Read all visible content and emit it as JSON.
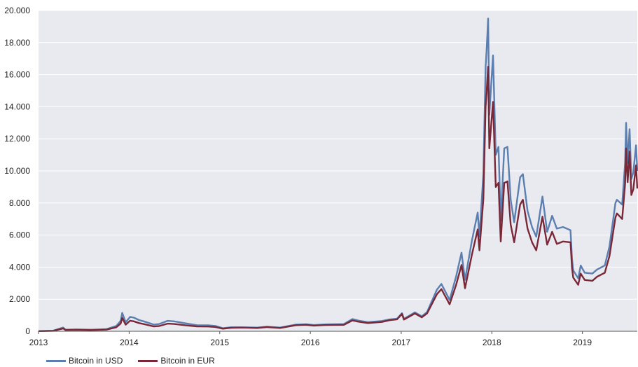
{
  "chart_data": {
    "type": "line",
    "title": "",
    "xlabel": "",
    "ylabel": "",
    "x_range": [
      "2013-01-01",
      "2019-08-10"
    ],
    "ylim": [
      0,
      20000
    ],
    "x_ticks": [
      {
        "date": "2013-01-01",
        "label": "2013"
      },
      {
        "date": "2014-01-01",
        "label": "2014"
      },
      {
        "date": "2015-01-01",
        "label": "2015"
      },
      {
        "date": "2016-01-01",
        "label": "2016"
      },
      {
        "date": "2017-01-01",
        "label": "2017"
      },
      {
        "date": "2018-01-01",
        "label": "2018"
      },
      {
        "date": "2019-01-01",
        "label": "2019"
      }
    ],
    "y_ticks": [
      {
        "value": 0,
        "label": "0"
      },
      {
        "value": 2000,
        "label": "2.000"
      },
      {
        "value": 4000,
        "label": "4.000"
      },
      {
        "value": 6000,
        "label": "6.000"
      },
      {
        "value": 8000,
        "label": "8.000"
      },
      {
        "value": 10000,
        "label": "10.000"
      },
      {
        "value": 12000,
        "label": "12.000"
      },
      {
        "value": 14000,
        "label": "14.000"
      },
      {
        "value": 16000,
        "label": "16.000"
      },
      {
        "value": 18000,
        "label": "18.000"
      },
      {
        "value": 20000,
        "label": "20.000"
      }
    ],
    "grid": true,
    "legend_position": "bottom-left",
    "plot_background": "#e8eaf0",
    "series": [
      {
        "name": "Bitcoin in USD",
        "color": "#5b7fb1",
        "points": [
          [
            "2013-01-01",
            13
          ],
          [
            "2013-03-01",
            35
          ],
          [
            "2013-04-10",
            230
          ],
          [
            "2013-04-20",
            100
          ],
          [
            "2013-06-01",
            120
          ],
          [
            "2013-08-01",
            100
          ],
          [
            "2013-10-01",
            130
          ],
          [
            "2013-11-10",
            330
          ],
          [
            "2013-11-28",
            650
          ],
          [
            "2013-12-04",
            1150
          ],
          [
            "2013-12-10",
            900
          ],
          [
            "2013-12-18",
            560
          ],
          [
            "2014-01-05",
            900
          ],
          [
            "2014-01-20",
            850
          ],
          [
            "2014-02-10",
            700
          ],
          [
            "2014-03-01",
            620
          ],
          [
            "2014-04-10",
            420
          ],
          [
            "2014-05-01",
            450
          ],
          [
            "2014-06-05",
            650
          ],
          [
            "2014-07-01",
            620
          ],
          [
            "2014-08-15",
            500
          ],
          [
            "2014-10-01",
            380
          ],
          [
            "2014-11-15",
            370
          ],
          [
            "2014-12-15",
            330
          ],
          [
            "2015-01-14",
            190
          ],
          [
            "2015-02-15",
            250
          ],
          [
            "2015-04-01",
            250
          ],
          [
            "2015-06-01",
            230
          ],
          [
            "2015-07-10",
            290
          ],
          [
            "2015-09-01",
            230
          ],
          [
            "2015-11-04",
            420
          ],
          [
            "2015-12-15",
            440
          ],
          [
            "2016-01-15",
            390
          ],
          [
            "2016-03-01",
            430
          ],
          [
            "2016-05-15",
            450
          ],
          [
            "2016-06-18",
            760
          ],
          [
            "2016-07-15",
            660
          ],
          [
            "2016-08-20",
            570
          ],
          [
            "2016-10-15",
            640
          ],
          [
            "2016-11-15",
            740
          ],
          [
            "2016-12-15",
            780
          ],
          [
            "2017-01-04",
            1130
          ],
          [
            "2017-01-12",
            780
          ],
          [
            "2017-02-25",
            1180
          ],
          [
            "2017-03-25",
            940
          ],
          [
            "2017-04-15",
            1200
          ],
          [
            "2017-05-25",
            2600
          ],
          [
            "2017-06-12",
            2950
          ],
          [
            "2017-07-15",
            1950
          ],
          [
            "2017-08-10",
            3400
          ],
          [
            "2017-09-01",
            4900
          ],
          [
            "2017-09-15",
            3200
          ],
          [
            "2017-10-12",
            5600
          ],
          [
            "2017-11-05",
            7400
          ],
          [
            "2017-11-12",
            5900
          ],
          [
            "2017-11-28",
            9800
          ],
          [
            "2017-12-07",
            16500
          ],
          [
            "2017-12-11",
            17500
          ],
          [
            "2017-12-17",
            19500
          ],
          [
            "2017-12-22",
            13500
          ],
          [
            "2018-01-06",
            17200
          ],
          [
            "2018-01-17",
            11000
          ],
          [
            "2018-01-28",
            11500
          ],
          [
            "2018-02-06",
            6900
          ],
          [
            "2018-02-20",
            11400
          ],
          [
            "2018-03-05",
            11500
          ],
          [
            "2018-03-18",
            8200
          ],
          [
            "2018-04-01",
            6800
          ],
          [
            "2018-04-25",
            9600
          ],
          [
            "2018-05-06",
            9800
          ],
          [
            "2018-05-25",
            7500
          ],
          [
            "2018-06-12",
            6500
          ],
          [
            "2018-06-29",
            5900
          ],
          [
            "2018-07-24",
            8400
          ],
          [
            "2018-08-12",
            6200
          ],
          [
            "2018-09-01",
            7200
          ],
          [
            "2018-09-20",
            6400
          ],
          [
            "2018-10-15",
            6500
          ],
          [
            "2018-11-14",
            6300
          ],
          [
            "2018-11-20",
            4500
          ],
          [
            "2018-11-25",
            3800
          ],
          [
            "2018-12-15",
            3300
          ],
          [
            "2018-12-25",
            4100
          ],
          [
            "2019-01-10",
            3650
          ],
          [
            "2019-02-10",
            3600
          ],
          [
            "2019-03-01",
            3850
          ],
          [
            "2019-04-01",
            4100
          ],
          [
            "2019-04-20",
            5300
          ],
          [
            "2019-05-14",
            8000
          ],
          [
            "2019-05-20",
            8200
          ],
          [
            "2019-06-10",
            7900
          ],
          [
            "2019-06-22",
            10500
          ],
          [
            "2019-06-26",
            13000
          ],
          [
            "2019-07-02",
            10500
          ],
          [
            "2019-07-10",
            12600
          ],
          [
            "2019-07-17",
            9500
          ],
          [
            "2019-07-25",
            9900
          ],
          [
            "2019-08-05",
            11600
          ],
          [
            "2019-08-10",
            10000
          ]
        ]
      },
      {
        "name": "Bitcoin in EUR",
        "color": "#7a2838",
        "points": [
          [
            "2013-01-01",
            10
          ],
          [
            "2013-03-01",
            27
          ],
          [
            "2013-04-10",
            180
          ],
          [
            "2013-04-20",
            80
          ],
          [
            "2013-06-01",
            90
          ],
          [
            "2013-08-01",
            75
          ],
          [
            "2013-10-01",
            100
          ],
          [
            "2013-11-10",
            250
          ],
          [
            "2013-11-28",
            480
          ],
          [
            "2013-12-04",
            840
          ],
          [
            "2013-12-10",
            660
          ],
          [
            "2013-12-18",
            410
          ],
          [
            "2014-01-05",
            660
          ],
          [
            "2014-01-20",
            620
          ],
          [
            "2014-02-10",
            510
          ],
          [
            "2014-03-01",
            450
          ],
          [
            "2014-04-10",
            300
          ],
          [
            "2014-05-01",
            325
          ],
          [
            "2014-06-05",
            475
          ],
          [
            "2014-07-01",
            455
          ],
          [
            "2014-08-15",
            375
          ],
          [
            "2014-10-01",
            300
          ],
          [
            "2014-11-15",
            295
          ],
          [
            "2014-12-15",
            265
          ],
          [
            "2015-01-14",
            160
          ],
          [
            "2015-02-15",
            220
          ],
          [
            "2015-04-01",
            230
          ],
          [
            "2015-06-01",
            205
          ],
          [
            "2015-07-10",
            260
          ],
          [
            "2015-09-01",
            205
          ],
          [
            "2015-11-04",
            380
          ],
          [
            "2015-12-15",
            400
          ],
          [
            "2016-01-15",
            355
          ],
          [
            "2016-03-01",
            390
          ],
          [
            "2016-05-15",
            400
          ],
          [
            "2016-06-18",
            675
          ],
          [
            "2016-07-15",
            595
          ],
          [
            "2016-08-20",
            510
          ],
          [
            "2016-10-15",
            580
          ],
          [
            "2016-11-15",
            690
          ],
          [
            "2016-12-15",
            745
          ],
          [
            "2017-01-04",
            1080
          ],
          [
            "2017-01-12",
            730
          ],
          [
            "2017-02-25",
            1110
          ],
          [
            "2017-03-25",
            870
          ],
          [
            "2017-04-15",
            1120
          ],
          [
            "2017-05-25",
            2320
          ],
          [
            "2017-06-12",
            2630
          ],
          [
            "2017-07-15",
            1680
          ],
          [
            "2017-08-10",
            2880
          ],
          [
            "2017-09-01",
            4130
          ],
          [
            "2017-09-15",
            2680
          ],
          [
            "2017-10-12",
            4730
          ],
          [
            "2017-11-05",
            6350
          ],
          [
            "2017-11-12",
            5050
          ],
          [
            "2017-11-28",
            8250
          ],
          [
            "2017-12-07",
            14000
          ],
          [
            "2017-12-11",
            14850
          ],
          [
            "2017-12-17",
            16500
          ],
          [
            "2017-12-22",
            11400
          ],
          [
            "2018-01-06",
            14300
          ],
          [
            "2018-01-17",
            9000
          ],
          [
            "2018-01-28",
            9250
          ],
          [
            "2018-02-06",
            5600
          ],
          [
            "2018-02-20",
            9250
          ],
          [
            "2018-03-05",
            9350
          ],
          [
            "2018-03-18",
            6650
          ],
          [
            "2018-04-01",
            5550
          ],
          [
            "2018-04-25",
            7900
          ],
          [
            "2018-05-06",
            8200
          ],
          [
            "2018-05-25",
            6400
          ],
          [
            "2018-06-12",
            5550
          ],
          [
            "2018-06-29",
            5050
          ],
          [
            "2018-07-24",
            7150
          ],
          [
            "2018-08-12",
            5400
          ],
          [
            "2018-09-01",
            6200
          ],
          [
            "2018-09-20",
            5450
          ],
          [
            "2018-10-15",
            5600
          ],
          [
            "2018-11-14",
            5550
          ],
          [
            "2018-11-20",
            3950
          ],
          [
            "2018-11-25",
            3350
          ],
          [
            "2018-12-15",
            2900
          ],
          [
            "2018-12-25",
            3600
          ],
          [
            "2019-01-10",
            3200
          ],
          [
            "2019-02-10",
            3150
          ],
          [
            "2019-03-01",
            3400
          ],
          [
            "2019-04-01",
            3650
          ],
          [
            "2019-04-20",
            4700
          ],
          [
            "2019-05-14",
            7100
          ],
          [
            "2019-05-20",
            7350
          ],
          [
            "2019-06-10",
            7000
          ],
          [
            "2019-06-22",
            9200
          ],
          [
            "2019-06-26",
            11400
          ],
          [
            "2019-07-02",
            9300
          ],
          [
            "2019-07-10",
            11200
          ],
          [
            "2019-07-17",
            8500
          ],
          [
            "2019-07-25",
            8850
          ],
          [
            "2019-08-05",
            10350
          ],
          [
            "2019-08-10",
            8900
          ]
        ]
      }
    ]
  }
}
